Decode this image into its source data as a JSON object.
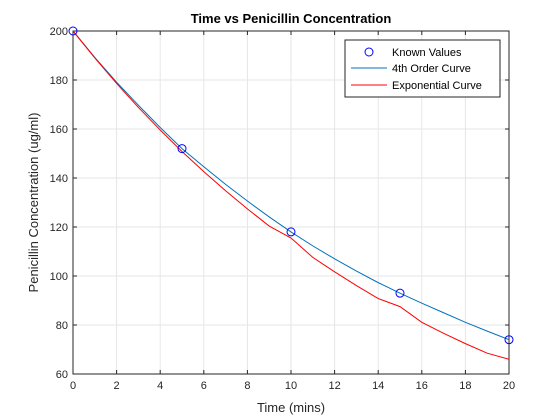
{
  "chart_data": {
    "type": "line",
    "title": "Time vs Penicillin Concentration",
    "xlabel": "Time (mins)",
    "ylabel": "Penicillin Concentration (ug/ml)",
    "xlim": [
      0,
      20
    ],
    "ylim": [
      60,
      200
    ],
    "xticks": [
      0,
      2,
      4,
      6,
      8,
      10,
      12,
      14,
      16,
      18,
      20
    ],
    "yticks": [
      60,
      80,
      100,
      120,
      140,
      160,
      180,
      200
    ],
    "grid": true,
    "legend_position": "top-right",
    "known_values": {
      "name": "Known Values",
      "x": [
        0,
        5,
        10,
        15,
        20
      ],
      "y": [
        200,
        152,
        118,
        93,
        74
      ],
      "color": "#0000ff"
    },
    "series": [
      {
        "name": "4th Order Curve",
        "color": "#0072bd",
        "x": [
          0,
          1,
          2,
          3,
          4,
          5,
          6,
          7,
          8,
          9,
          10,
          11,
          12,
          13,
          14,
          15,
          16,
          17,
          18,
          19,
          20
        ],
        "y": [
          200,
          189.2,
          179.1,
          169.7,
          160.6,
          152.0,
          144.6,
          137.4,
          130.6,
          124.1,
          118.0,
          112.3,
          107.0,
          102.0,
          97.3,
          93.0,
          88.9,
          85.0,
          81.1,
          77.5,
          74.0
        ]
      },
      {
        "name": "Exponential Curve",
        "color": "#ff0000",
        "x": [
          0,
          1,
          2,
          3,
          4,
          5,
          6,
          7,
          8,
          9,
          10,
          11,
          12,
          13,
          14,
          15,
          16,
          17,
          18,
          19,
          20
        ],
        "y": [
          200,
          189.0,
          178.6,
          168.8,
          159.6,
          150.8,
          142.6,
          134.8,
          127.4,
          120.4,
          115.5,
          107.6,
          101.7,
          96.1,
          90.8,
          87.5,
          81.1,
          76.6,
          72.4,
          68.5,
          66.0
        ]
      }
    ]
  }
}
